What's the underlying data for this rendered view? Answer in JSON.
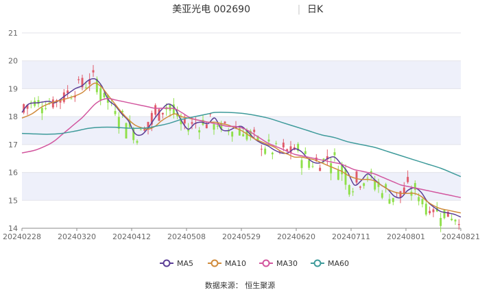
{
  "header": {
    "stock": "美亚光电 002690",
    "separator": "|",
    "period": "日K"
  },
  "source_text": "数据来源：  恒生聚源",
  "chart_data": {
    "type": "candlestick",
    "ylim": [
      14,
      21
    ],
    "yticks": [
      14,
      15,
      16,
      17,
      18,
      19,
      20,
      21
    ],
    "xticks": [
      "20240228",
      "20240320",
      "20240412",
      "20240508",
      "20240529",
      "20240620",
      "20240711",
      "20240801",
      "20240821"
    ],
    "trading_days": 120,
    "up_color": "#e05a6a",
    "down_color": "#8fe04a",
    "band_color": "#eef0fa",
    "legend": [
      {
        "name": "MA5",
        "color": "#5a3d96"
      },
      {
        "name": "MA10",
        "color": "#d08a3a"
      },
      {
        "name": "MA30",
        "color": "#d2559e"
      },
      {
        "name": "MA60",
        "color": "#3d9a9a"
      }
    ],
    "ma": {
      "MA5": [
        [
          0,
          18.15
        ],
        [
          2,
          18.45
        ],
        [
          5,
          18.5
        ],
        [
          8,
          18.55
        ],
        [
          10,
          18.5
        ],
        [
          13,
          18.75
        ],
        [
          16,
          19.0
        ],
        [
          18,
          19.1
        ],
        [
          20,
          19.3
        ],
        [
          22,
          19.35
        ],
        [
          24,
          19.1
        ],
        [
          26,
          18.6
        ],
        [
          28,
          18.4
        ],
        [
          30,
          18.1
        ],
        [
          32,
          17.85
        ],
        [
          34,
          17.4
        ],
        [
          36,
          17.35
        ],
        [
          38,
          17.6
        ],
        [
          40,
          17.95
        ],
        [
          42,
          18.25
        ],
        [
          44,
          18.45
        ],
        [
          46,
          18.3
        ],
        [
          48,
          17.85
        ],
        [
          50,
          17.55
        ],
        [
          52,
          17.75
        ],
        [
          54,
          17.8
        ],
        [
          56,
          17.75
        ],
        [
          58,
          17.95
        ],
        [
          60,
          17.55
        ],
        [
          62,
          17.5
        ],
        [
          64,
          17.6
        ],
        [
          66,
          17.65
        ],
        [
          68,
          17.45
        ],
        [
          70,
          17.2
        ],
        [
          72,
          17.05
        ],
        [
          74,
          16.95
        ],
        [
          76,
          16.8
        ],
        [
          78,
          16.7
        ],
        [
          80,
          16.7
        ],
        [
          82,
          16.85
        ],
        [
          84,
          16.75
        ],
        [
          86,
          16.5
        ],
        [
          88,
          16.35
        ],
        [
          90,
          16.35
        ],
        [
          92,
          16.5
        ],
        [
          94,
          16.55
        ],
        [
          96,
          16.3
        ],
        [
          98,
          16.0
        ],
        [
          100,
          15.55
        ],
        [
          102,
          15.7
        ],
        [
          104,
          15.95
        ],
        [
          106,
          15.75
        ],
        [
          108,
          15.55
        ],
        [
          110,
          15.4
        ],
        [
          112,
          15.15
        ],
        [
          114,
          15.1
        ],
        [
          116,
          15.35
        ],
        [
          118,
          15.45
        ],
        [
          120,
          15.3
        ],
        [
          122,
          14.95
        ],
        [
          124,
          14.75
        ],
        [
          126,
          14.6
        ],
        [
          128,
          14.55
        ],
        [
          130,
          14.5
        ],
        [
          132,
          14.4
        ]
      ],
      "MA10": [
        [
          0,
          17.95
        ],
        [
          3,
          18.1
        ],
        [
          6,
          18.35
        ],
        [
          9,
          18.5
        ],
        [
          12,
          18.6
        ],
        [
          15,
          18.7
        ],
        [
          18,
          18.85
        ],
        [
          20,
          19.05
        ],
        [
          22,
          19.2
        ],
        [
          24,
          19.05
        ],
        [
          26,
          18.75
        ],
        [
          28,
          18.45
        ],
        [
          30,
          18.15
        ],
        [
          32,
          17.9
        ],
        [
          34,
          17.7
        ],
        [
          36,
          17.6
        ],
        [
          38,
          17.55
        ],
        [
          40,
          17.65
        ],
        [
          42,
          17.85
        ],
        [
          44,
          18.0
        ],
        [
          46,
          18.1
        ],
        [
          48,
          18.0
        ],
        [
          50,
          17.95
        ],
        [
          52,
          17.9
        ],
        [
          54,
          17.85
        ],
        [
          56,
          17.8
        ],
        [
          58,
          17.8
        ],
        [
          60,
          17.75
        ],
        [
          62,
          17.7
        ],
        [
          64,
          17.6
        ],
        [
          66,
          17.5
        ],
        [
          68,
          17.35
        ],
        [
          70,
          17.2
        ],
        [
          72,
          17.1
        ],
        [
          74,
          17.0
        ],
        [
          76,
          16.9
        ],
        [
          78,
          16.75
        ],
        [
          80,
          16.65
        ],
        [
          82,
          16.55
        ],
        [
          84,
          16.55
        ],
        [
          86,
          16.5
        ],
        [
          88,
          16.45
        ],
        [
          90,
          16.35
        ],
        [
          92,
          16.25
        ],
        [
          94,
          16.15
        ],
        [
          96,
          16.05
        ],
        [
          98,
          15.9
        ],
        [
          100,
          15.8
        ],
        [
          102,
          15.75
        ],
        [
          104,
          15.75
        ],
        [
          106,
          15.7
        ],
        [
          108,
          15.55
        ],
        [
          110,
          15.4
        ],
        [
          112,
          15.3
        ],
        [
          114,
          15.25
        ],
        [
          116,
          15.25
        ],
        [
          118,
          15.25
        ],
        [
          120,
          15.15
        ],
        [
          122,
          14.95
        ],
        [
          124,
          14.8
        ],
        [
          126,
          14.7
        ],
        [
          128,
          14.65
        ],
        [
          130,
          14.6
        ],
        [
          132,
          14.55
        ]
      ],
      "MA30": [
        [
          0,
          16.7
        ],
        [
          4,
          16.8
        ],
        [
          8,
          17.0
        ],
        [
          10,
          17.15
        ],
        [
          12,
          17.35
        ],
        [
          14,
          17.55
        ],
        [
          16,
          17.75
        ],
        [
          18,
          17.95
        ],
        [
          20,
          18.2
        ],
        [
          22,
          18.45
        ],
        [
          24,
          18.6
        ],
        [
          26,
          18.65
        ],
        [
          28,
          18.6
        ],
        [
          30,
          18.55
        ],
        [
          32,
          18.5
        ],
        [
          34,
          18.45
        ],
        [
          36,
          18.4
        ],
        [
          38,
          18.35
        ],
        [
          40,
          18.3
        ],
        [
          42,
          18.3
        ],
        [
          44,
          18.3
        ],
        [
          46,
          18.28
        ],
        [
          48,
          18.15
        ],
        [
          50,
          18.0
        ],
        [
          52,
          17.9
        ],
        [
          54,
          17.85
        ],
        [
          56,
          17.8
        ],
        [
          58,
          17.75
        ],
        [
          60,
          17.7
        ],
        [
          62,
          17.65
        ],
        [
          64,
          17.65
        ],
        [
          66,
          17.6
        ],
        [
          68,
          17.5
        ],
        [
          70,
          17.35
        ],
        [
          72,
          17.2
        ],
        [
          74,
          17.05
        ],
        [
          76,
          16.95
        ],
        [
          78,
          16.85
        ],
        [
          80,
          16.75
        ],
        [
          82,
          16.65
        ],
        [
          84,
          16.6
        ],
        [
          86,
          16.55
        ],
        [
          88,
          16.5
        ],
        [
          90,
          16.45
        ],
        [
          92,
          16.4
        ],
        [
          94,
          16.35
        ],
        [
          96,
          16.3
        ],
        [
          98,
          16.2
        ],
        [
          100,
          16.1
        ],
        [
          102,
          16.05
        ],
        [
          104,
          16.0
        ],
        [
          106,
          15.95
        ],
        [
          108,
          15.85
        ],
        [
          110,
          15.75
        ],
        [
          112,
          15.65
        ],
        [
          114,
          15.55
        ],
        [
          116,
          15.5
        ],
        [
          118,
          15.45
        ],
        [
          120,
          15.4
        ],
        [
          122,
          15.35
        ],
        [
          124,
          15.3
        ],
        [
          126,
          15.25
        ],
        [
          128,
          15.2
        ],
        [
          130,
          15.15
        ],
        [
          132,
          15.1
        ]
      ],
      "MA60": [
        [
          0,
          17.4
        ],
        [
          4,
          17.38
        ],
        [
          8,
          17.37
        ],
        [
          12,
          17.4
        ],
        [
          16,
          17.48
        ],
        [
          20,
          17.58
        ],
        [
          24,
          17.62
        ],
        [
          28,
          17.62
        ],
        [
          30,
          17.6
        ],
        [
          34,
          17.58
        ],
        [
          38,
          17.6
        ],
        [
          40,
          17.65
        ],
        [
          44,
          17.75
        ],
        [
          48,
          17.9
        ],
        [
          52,
          18.0
        ],
        [
          56,
          18.1
        ],
        [
          58,
          18.15
        ],
        [
          62,
          18.15
        ],
        [
          66,
          18.12
        ],
        [
          70,
          18.05
        ],
        [
          74,
          17.95
        ],
        [
          78,
          17.8
        ],
        [
          82,
          17.65
        ],
        [
          86,
          17.5
        ],
        [
          90,
          17.35
        ],
        [
          94,
          17.25
        ],
        [
          98,
          17.1
        ],
        [
          102,
          17.0
        ],
        [
          106,
          16.9
        ],
        [
          110,
          16.75
        ],
        [
          114,
          16.6
        ],
        [
          118,
          16.45
        ],
        [
          122,
          16.3
        ],
        [
          126,
          16.15
        ],
        [
          130,
          15.95
        ],
        [
          132,
          15.85
        ]
      ]
    }
  }
}
